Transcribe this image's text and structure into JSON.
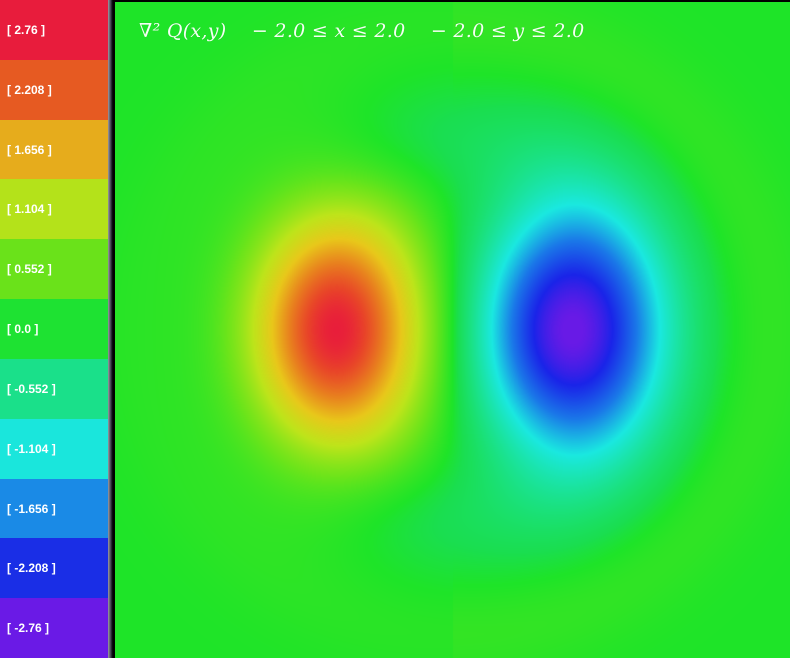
{
  "title": "∇² Q(x,y)    − 2.0 ≤ x ≤ 2.0    − 2.0 ≤ y ≤ 2.0",
  "legend": [
    {
      "label": "[ 2.76 ]",
      "value": 2.76,
      "color": "#e81c3c"
    },
    {
      "label": "[ 2.208 ]",
      "value": 2.208,
      "color": "#e65a22"
    },
    {
      "label": "[ 1.656 ]",
      "value": 1.656,
      "color": "#e6ac1c"
    },
    {
      "label": "[ 1.104 ]",
      "value": 1.104,
      "color": "#b4e21a"
    },
    {
      "label": "[ 0.552 ]",
      "value": 0.552,
      "color": "#6ae21a"
    },
    {
      "label": "[ 0.0 ]",
      "value": 0.0,
      "color": "#1ee232"
    },
    {
      "label": "[ -0.552 ]",
      "value": -0.552,
      "color": "#1ae08a"
    },
    {
      "label": "[ -1.104 ]",
      "value": -1.104,
      "color": "#1ae6dc"
    },
    {
      "label": "[ -1.656 ]",
      "value": -1.656,
      "color": "#1a8ae6"
    },
    {
      "label": "[ -2.208 ]",
      "value": -2.208,
      "color": "#1a2ee6"
    },
    {
      "label": "[ -2.76 ]",
      "value": -2.76,
      "color": "#6a1ae6"
    }
  ],
  "chart_data": {
    "type": "heatmap",
    "title": "∇² Q(x,y)    − 2.0 ≤ x ≤ 2.0    − 2.0 ≤ y ≤ 2.0",
    "xlim": [
      -2.0,
      2.0
    ],
    "ylim": [
      -2.0,
      2.0
    ],
    "zlim": [
      -2.76,
      2.76
    ],
    "features": [
      {
        "kind": "maximum",
        "x": -0.7,
        "y": 0.0,
        "value": 2.76
      },
      {
        "kind": "minimum",
        "x": 0.7,
        "y": 0.0,
        "value": -2.76
      }
    ],
    "colorscale": "rainbow (red = high, green = 0, violet = low)"
  }
}
